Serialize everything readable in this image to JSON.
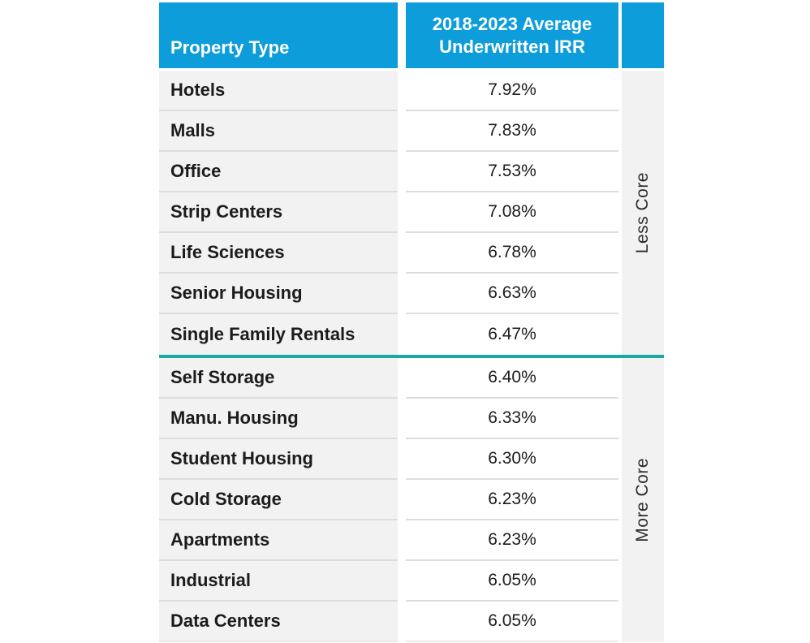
{
  "chart_data": {
    "type": "table",
    "title": "2018-2023 Average Underwritten IRR by Property Type",
    "columns": [
      "Property Type",
      "2018-2023 Average Underwritten IRR"
    ],
    "categories": [
      "Hotels",
      "Malls",
      "Office",
      "Strip Centers",
      "Life Sciences",
      "Senior Housing",
      "Single Family Rentals",
      "Self Storage",
      "Manu. Housing",
      "Student Housing",
      "Cold Storage",
      "Apartments",
      "Industrial",
      "Data Centers"
    ],
    "values": [
      7.92,
      7.83,
      7.53,
      7.08,
      6.78,
      6.63,
      6.47,
      6.4,
      6.33,
      6.3,
      6.23,
      6.23,
      6.05,
      6.05
    ],
    "value_unit": "%",
    "group_annotations": [
      {
        "label": "Less Core",
        "rows": [
          "Hotels",
          "Malls",
          "Office",
          "Strip Centers",
          "Life Sciences",
          "Senior Housing",
          "Single Family Rentals"
        ]
      },
      {
        "label": "More Core",
        "rows": [
          "Self Storage",
          "Manu. Housing",
          "Student Housing",
          "Cold Storage",
          "Apartments",
          "Industrial",
          "Data Centers"
        ]
      }
    ]
  },
  "table": {
    "header": {
      "property_type": "Property Type",
      "irr": "2018-2023 Average Underwritten IRR"
    },
    "groups": [
      {
        "label": "Less Core"
      },
      {
        "label": "More Core"
      }
    ],
    "rows": [
      {
        "label": "Hotels",
        "value": "7.92%"
      },
      {
        "label": "Malls",
        "value": "7.83%"
      },
      {
        "label": "Office",
        "value": "7.53%"
      },
      {
        "label": "Strip Centers",
        "value": "7.08%"
      },
      {
        "label": "Life Sciences",
        "value": "6.78%"
      },
      {
        "label": "Senior Housing",
        "value": "6.63%"
      },
      {
        "label": "Single Family Rentals",
        "value": "6.47%"
      },
      {
        "label": "Self Storage",
        "value": "6.40%"
      },
      {
        "label": "Manu. Housing",
        "value": "6.33%"
      },
      {
        "label": "Student Housing",
        "value": "6.30%"
      },
      {
        "label": "Cold Storage",
        "value": "6.23%"
      },
      {
        "label": "Apartments",
        "value": "6.23%"
      },
      {
        "label": "Industrial",
        "value": "6.05%"
      },
      {
        "label": "Data Centers",
        "value": "6.05%"
      }
    ]
  },
  "colors": {
    "header_blue": "#0D9DDA",
    "row_gray": "#F2F2F2",
    "divider_teal": "#1CA7A4",
    "separator_gray": "#DDDDDD",
    "text_dark": "#1C1C1C",
    "header_text": "#FFFFFF"
  }
}
